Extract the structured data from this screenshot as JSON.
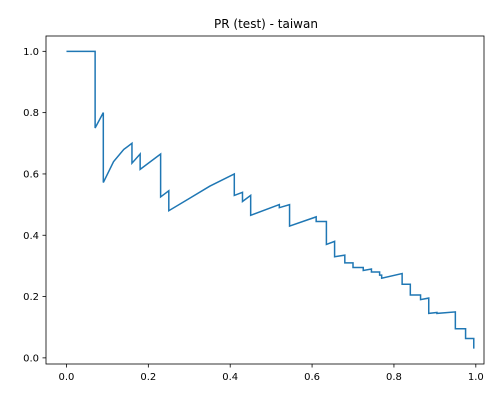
{
  "chart_data": {
    "type": "line",
    "title": "PR (test) - taiwan",
    "xlabel": "",
    "ylabel": "",
    "xlim": [
      -0.05,
      1.02
    ],
    "ylim": [
      -0.02,
      1.05
    ],
    "grid": false,
    "xticks": [
      "0.0",
      "0.2",
      "0.4",
      "0.6",
      "0.8",
      "1.0"
    ],
    "yticks": [
      "0.0",
      "0.2",
      "0.4",
      "0.6",
      "0.8",
      "1.0"
    ],
    "line_color": "#1f77b4",
    "series": [
      {
        "x": [
          0.0,
          0.07,
          0.07,
          0.09,
          0.09,
          0.115,
          0.14,
          0.16,
          0.16,
          0.18,
          0.18,
          0.23,
          0.23,
          0.25,
          0.25,
          0.3,
          0.35,
          0.41,
          0.41,
          0.43,
          0.43,
          0.45,
          0.45,
          0.52,
          0.52,
          0.545,
          0.545,
          0.61,
          0.61,
          0.635,
          0.635,
          0.655,
          0.655,
          0.68,
          0.68,
          0.7,
          0.7,
          0.725,
          0.725,
          0.745,
          0.745,
          0.765,
          0.765,
          0.77,
          0.77,
          0.82,
          0.82,
          0.84,
          0.84,
          0.865,
          0.865,
          0.885,
          0.885,
          0.905,
          0.905,
          0.95,
          0.95,
          0.975,
          0.975,
          0.995,
          0.995
        ],
        "y": [
          1.0,
          1.0,
          0.75,
          0.8,
          0.572,
          0.64,
          0.68,
          0.7,
          0.635,
          0.665,
          0.615,
          0.665,
          0.525,
          0.545,
          0.48,
          0.52,
          0.56,
          0.6,
          0.53,
          0.54,
          0.51,
          0.53,
          0.465,
          0.5,
          0.49,
          0.5,
          0.43,
          0.46,
          0.445,
          0.445,
          0.37,
          0.38,
          0.33,
          0.335,
          0.31,
          0.31,
          0.295,
          0.295,
          0.285,
          0.29,
          0.28,
          0.28,
          0.27,
          0.27,
          0.26,
          0.275,
          0.24,
          0.24,
          0.205,
          0.205,
          0.19,
          0.195,
          0.145,
          0.148,
          0.145,
          0.15,
          0.095,
          0.095,
          0.063,
          0.063,
          0.03
        ]
      }
    ]
  }
}
